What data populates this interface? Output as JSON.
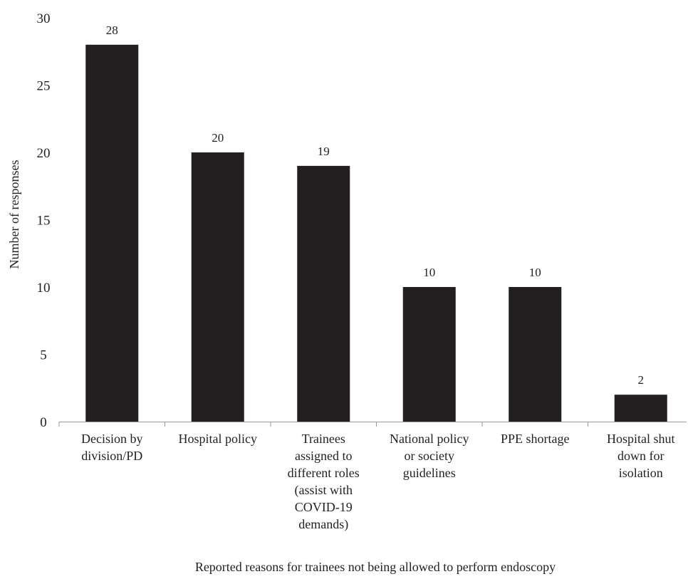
{
  "chart_data": {
    "type": "bar",
    "categories": [
      [
        "Decision by",
        "division/PD"
      ],
      [
        "Hospital policy"
      ],
      [
        "Trainees",
        "assigned to",
        "different roles",
        "(assist with",
        "COVID-19",
        "demands)"
      ],
      [
        "National policy",
        "or society",
        "guidelines"
      ],
      [
        "PPE shortage"
      ],
      [
        "Hospital shut",
        "down for",
        "isolation"
      ]
    ],
    "values": [
      28,
      20,
      19,
      10,
      10,
      2
    ],
    "data_labels": [
      "28",
      "20",
      "19",
      "10",
      "10",
      "2"
    ],
    "ylim": [
      0,
      30
    ],
    "yticks": [
      0,
      5,
      10,
      15,
      20,
      25,
      30
    ],
    "xlabel": "Reported reasons for trainees not being allowed to perform endoscopy",
    "ylabel": "Number of responses",
    "grid": false,
    "legend": "none",
    "bar_color": "#231f20"
  }
}
